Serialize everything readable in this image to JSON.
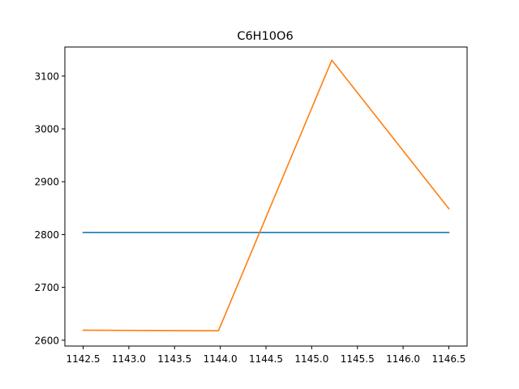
{
  "chart_data": {
    "type": "line",
    "title": "C6H10O6",
    "xlabel": "",
    "ylabel": "",
    "xlim": [
      1142.3,
      1146.7
    ],
    "ylim": [
      2589,
      3155
    ],
    "xticks": [
      1142.5,
      1143.0,
      1143.5,
      1144.0,
      1144.5,
      1145.0,
      1145.5,
      1146.0,
      1146.5
    ],
    "xtick_labels": [
      "1142.5",
      "1143.0",
      "1143.5",
      "1144.0",
      "1144.5",
      "1145.0",
      "1145.5",
      "1146.0",
      "1146.5"
    ],
    "yticks": [
      2600,
      2700,
      2800,
      2900,
      3000,
      3100
    ],
    "ytick_labels": [
      "2600",
      "2700",
      "2800",
      "2900",
      "3000",
      "3100"
    ],
    "grid": false,
    "legend": "none",
    "series": [
      {
        "color": "#1f77b4",
        "x": [
          1142.5,
          1146.5
        ],
        "y": [
          2804,
          2804
        ]
      },
      {
        "color": "#ff7f0e",
        "x": [
          1142.5,
          1143.98,
          1145.22,
          1146.5
        ],
        "y": [
          2619,
          2618,
          3130,
          2849
        ]
      }
    ]
  }
}
